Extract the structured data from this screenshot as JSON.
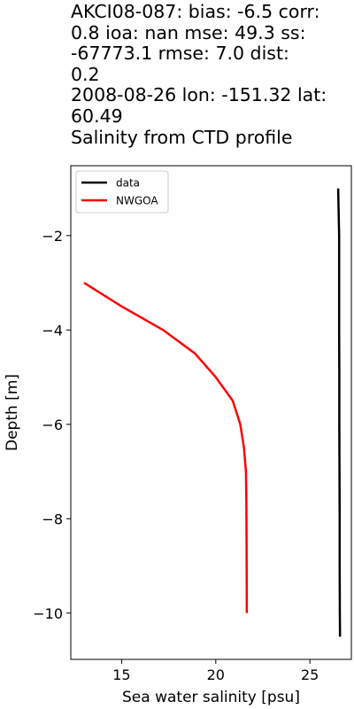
{
  "chart_data": {
    "type": "line",
    "title_lines": [
      "AKCI08-087: bias: -6.5  corr:",
      "0.8  ioa: nan  mse: 49.3  ss:",
      "-67773.1  rmse: 7.0  dist:",
      "0.2",
      "2008-08-26 lon: -151.32 lat:",
      "60.49",
      "Salinity from CTD profile"
    ],
    "xlabel": "Sea water salinity [psu]",
    "ylabel": "Depth [m]",
    "xlim": [
      12.3,
      27.2
    ],
    "ylim": [
      -10.98,
      -0.52
    ],
    "x_ticks": [
      15,
      20,
      25
    ],
    "y_ticks": [
      -2,
      -4,
      -6,
      -8,
      -10
    ],
    "legend": {
      "placement": "upper-left",
      "entries": [
        "data",
        "NWGOA"
      ]
    },
    "grid": false,
    "series": [
      {
        "name": "data",
        "color": "#000000",
        "points": [
          [
            26.5,
            -1.0
          ],
          [
            26.55,
            -2.0
          ],
          [
            26.55,
            -3.0
          ],
          [
            26.55,
            -4.0
          ],
          [
            26.56,
            -5.0
          ],
          [
            26.56,
            -6.0
          ],
          [
            26.57,
            -7.0
          ],
          [
            26.58,
            -8.0
          ],
          [
            26.58,
            -9.0
          ],
          [
            26.59,
            -10.0
          ],
          [
            26.6,
            -10.5
          ]
        ]
      },
      {
        "name": "NWGOA",
        "color": "#ff0000",
        "points": [
          [
            13.0,
            -3.0
          ],
          [
            15.0,
            -3.5
          ],
          [
            17.2,
            -4.0
          ],
          [
            18.9,
            -4.5
          ],
          [
            20.0,
            -5.0
          ],
          [
            20.9,
            -5.5
          ],
          [
            21.3,
            -6.0
          ],
          [
            21.5,
            -6.5
          ],
          [
            21.6,
            -7.0
          ],
          [
            21.62,
            -7.5
          ],
          [
            21.63,
            -8.0
          ],
          [
            21.64,
            -9.0
          ],
          [
            21.65,
            -10.0
          ]
        ]
      }
    ]
  }
}
